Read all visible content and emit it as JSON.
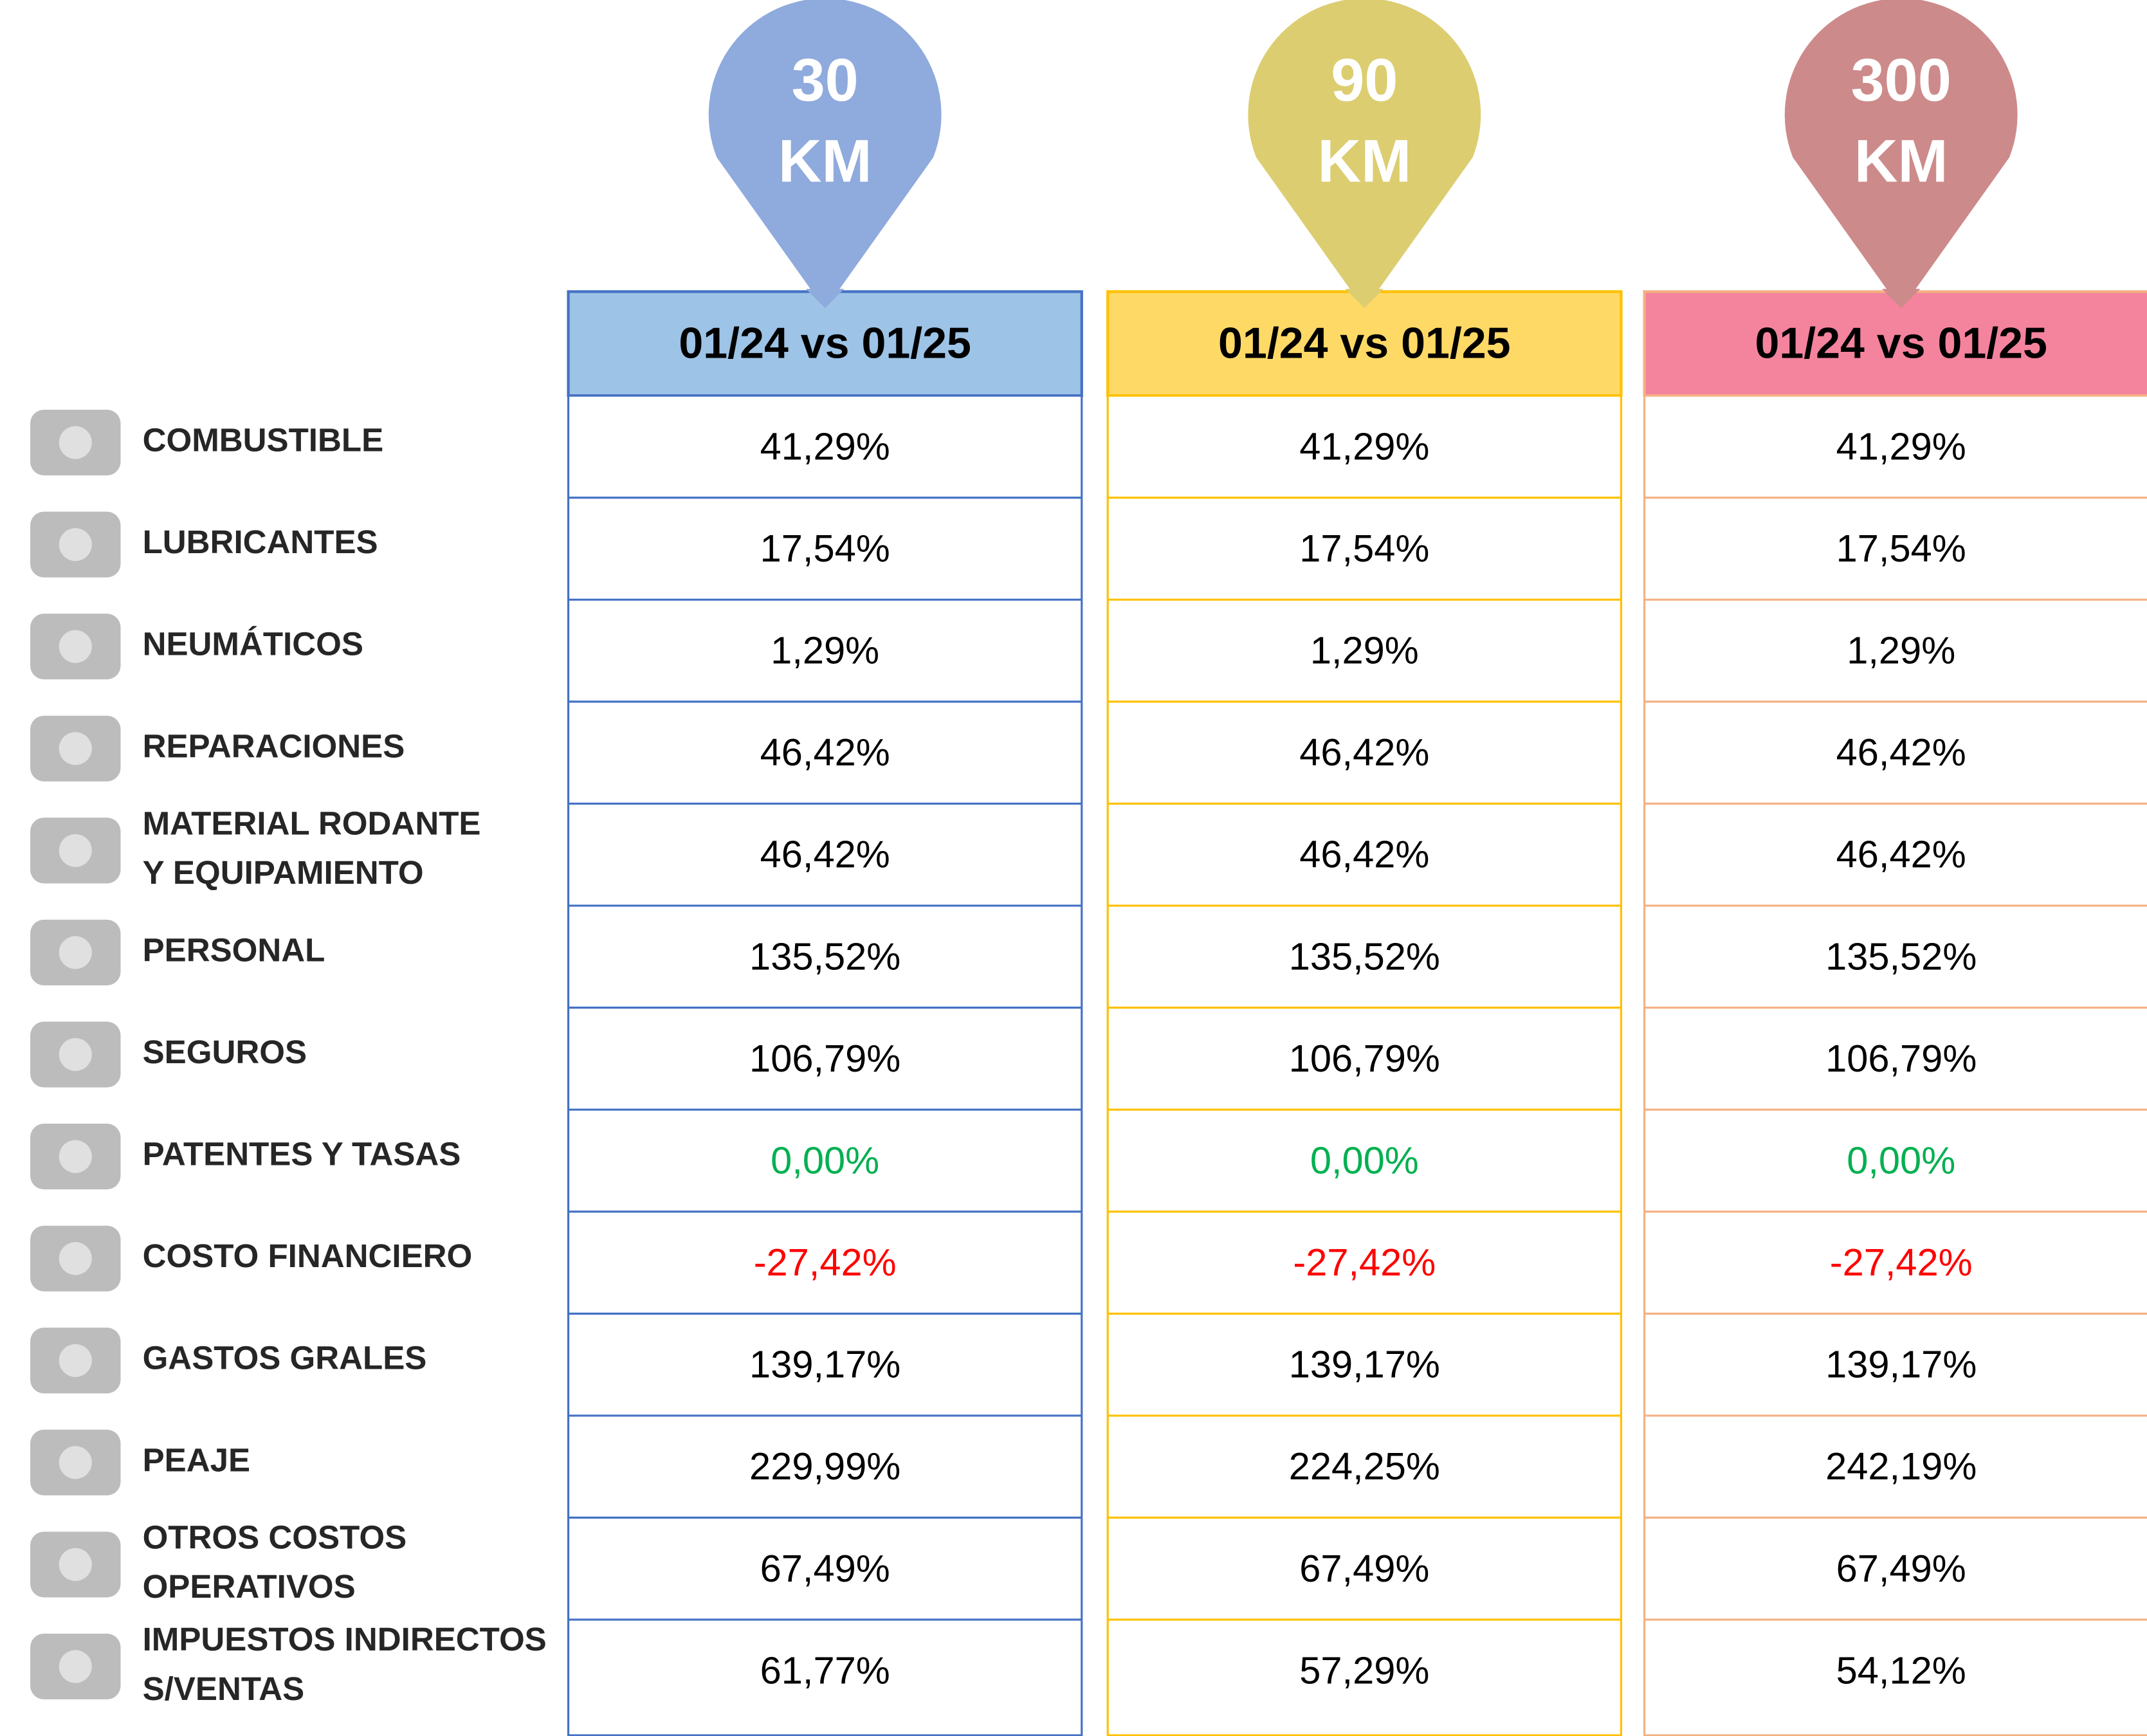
{
  "rows": [
    {
      "label": [
        "COMBUSTIBLE"
      ]
    },
    {
      "label": [
        "LUBRICANTES"
      ]
    },
    {
      "label": [
        "NEUMÁTICOS"
      ]
    },
    {
      "label": [
        "REPARACIONES"
      ]
    },
    {
      "label": [
        "MATERIAL RODANTE",
        "Y EQUIPAMIENTO"
      ]
    },
    {
      "label": [
        "PERSONAL"
      ]
    },
    {
      "label": [
        "SEGUROS"
      ]
    },
    {
      "label": [
        "PATENTES Y TASAS"
      ],
      "color": "#00b050"
    },
    {
      "label": [
        "COSTO FINANCIERO"
      ],
      "color": "#ff0000"
    },
    {
      "label": [
        "GASTOS GRALES"
      ]
    },
    {
      "label": [
        "PEAJE"
      ]
    },
    {
      "label": [
        "OTROS COSTOS",
        "OPERATIVOS"
      ]
    },
    {
      "label": [
        "IMPUESTOS INDIRECTOS",
        "S/VENTAS"
      ]
    }
  ],
  "columns": [
    {
      "distance": "30",
      "unit": "KM",
      "header": "01/24 vs 01/25",
      "pin_color": "#8faadc",
      "header_color": "#9dc3e6",
      "border_color": "#4472c4",
      "values": [
        "41,29%",
        "17,54%",
        "1,29%",
        "46,42%",
        "46,42%",
        "135,52%",
        "106,79%",
        "0,00%",
        "-27,42%",
        "139,17%",
        "229,99%",
        "67,49%",
        "61,77%"
      ]
    },
    {
      "distance": "90",
      "unit": "KM",
      "header": "01/24 vs 01/25",
      "pin_color": "#dccd70",
      "header_color": "#ffd966",
      "border_color": "#ffc000",
      "values": [
        "41,29%",
        "17,54%",
        "1,29%",
        "46,42%",
        "46,42%",
        "135,52%",
        "106,79%",
        "0,00%",
        "-27,42%",
        "139,17%",
        "224,25%",
        "67,49%",
        "57,29%"
      ]
    },
    {
      "distance": "300",
      "unit": "KM",
      "header": "01/24 vs 01/25",
      "pin_color": "#cd8a8a",
      "header_color": "#f4839e",
      "border_color": "#f4b183",
      "values": [
        "41,29%",
        "17,54%",
        "1,29%",
        "46,42%",
        "46,42%",
        "135,52%",
        "106,79%",
        "0,00%",
        "-27,42%",
        "139,17%",
        "242,19%",
        "67,49%",
        "54,12%"
      ]
    }
  ]
}
